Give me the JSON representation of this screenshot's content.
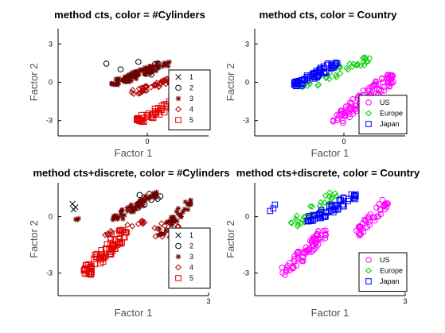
{
  "chart_data": [
    {
      "type": "scatter",
      "title": "method cts, color = #Cylinders",
      "xlabel": "Factor 1",
      "ylabel": "Factor 2",
      "xlim": [
        -3.2,
        2.2
      ],
      "ylim": [
        -4.2,
        4.2
      ],
      "xticks": [
        {
          "v": 0,
          "label": "0"
        }
      ],
      "yticks": [
        {
          "v": 3,
          "label": "3"
        },
        {
          "v": 0,
          "label": "0"
        },
        {
          "v": -3,
          "label": "-3"
        }
      ],
      "legend_position": "bottom-right",
      "series": [
        {
          "name": "1",
          "marker": "x",
          "color": "#000000",
          "clusters": []
        },
        {
          "name": "2",
          "marker": "circle",
          "color": "#000000",
          "clusters": [
            {
              "x": [
                -1.9,
                0.6
              ],
              "y": [
                0.4,
                1.6
              ],
              "n": 10
            }
          ]
        },
        {
          "name": "3",
          "marker": "star",
          "color": "#6e0000",
          "clusters": [
            {
              "x": [
                -1.3,
                0.8
              ],
              "y": [
                -0.2,
                1.6
              ],
              "n": 90
            }
          ]
        },
        {
          "name": "4",
          "marker": "diamond",
          "color": "#b00000",
          "clusters": [
            {
              "x": [
                -0.6,
                1.2
              ],
              "y": [
                -0.9,
                0.4
              ],
              "n": 45
            }
          ]
        },
        {
          "name": "5",
          "marker": "square",
          "color": "#e00000",
          "clusters": [
            {
              "x": [
                -0.4,
                1.5
              ],
              "y": [
                -3.1,
                -1.1
              ],
              "n": 60
            }
          ]
        }
      ]
    },
    {
      "type": "scatter",
      "title": "method cts, color = Country",
      "xlabel": "Factor 1",
      "ylabel": "Factor 2",
      "xlim": [
        -3.2,
        2.2
      ],
      "ylim": [
        -4.2,
        4.2
      ],
      "xticks": [
        {
          "v": 0,
          "label": "0"
        }
      ],
      "yticks": [
        {
          "v": 3,
          "label": "3"
        },
        {
          "v": 0,
          "label": "0"
        },
        {
          "v": -3,
          "label": "-3"
        }
      ],
      "legend_position": "bottom-right",
      "series": [
        {
          "name": "US",
          "marker": "circle",
          "color": "#ff00ff",
          "clusters": [
            {
              "x": [
                -0.4,
                1.8
              ],
              "y": [
                -3.2,
                0.6
              ],
              "n": 110
            }
          ]
        },
        {
          "name": "Europe",
          "marker": "diamond",
          "color": "#00cc00",
          "clusters": [
            {
              "x": [
                -1.5,
                1.0
              ],
              "y": [
                -0.4,
                2.0
              ],
              "n": 35
            }
          ]
        },
        {
          "name": "Japan",
          "marker": "square",
          "color": "#0000ff",
          "clusters": [
            {
              "x": [
                -1.8,
                -0.2
              ],
              "y": [
                -0.3,
                1.6
              ],
              "n": 70
            }
          ]
        }
      ]
    },
    {
      "type": "scatter",
      "title": "method cts+discrete, color = #Cylinders",
      "xlabel": "Factor 1",
      "ylabel": "Factor 2",
      "xlim": [
        -4.2,
        3.0
      ],
      "ylim": [
        -4.2,
        1.8
      ],
      "xticks": [
        {
          "v": 3,
          "label": "3"
        }
      ],
      "yticks": [
        {
          "v": 0,
          "label": "0"
        },
        {
          "v": -3,
          "label": "-3"
        }
      ],
      "legend_position": "bottom-right",
      "series": [
        {
          "name": "1",
          "marker": "x",
          "color": "#000000",
          "clusters": [
            {
              "x": [
                -3.55,
                -3.25
              ],
              "y": [
                0.3,
                0.8
              ],
              "n": 3
            }
          ]
        },
        {
          "name": "2",
          "marker": "circle",
          "color": "#000000",
          "clusters": [
            {
              "x": [
                -0.6,
                0.7
              ],
              "y": [
                0.3,
                1.3
              ],
              "n": 8
            }
          ]
        },
        {
          "name": "3",
          "marker": "star",
          "color": "#6e0000",
          "clusters": [
            {
              "x": [
                -3.6,
                -3.2
              ],
              "y": [
                -0.2,
                0.5
              ],
              "n": 3
            },
            {
              "x": [
                -1.6,
                0.6
              ],
              "y": [
                -0.2,
                1.3
              ],
              "n": 60
            },
            {
              "x": [
                0.6,
                2.2
              ],
              "y": [
                -1.0,
                0.9
              ],
              "n": 40
            }
          ]
        },
        {
          "name": "4",
          "marker": "diamond",
          "color": "#b00000",
          "clusters": [
            {
              "x": [
                -2.0,
                0.0
              ],
              "y": [
                -1.0,
                -0.2
              ],
              "n": 14
            },
            {
              "x": [
                0.4,
                1.6
              ],
              "y": [
                -1.1,
                -0.3
              ],
              "n": 10
            }
          ]
        },
        {
          "name": "5",
          "marker": "square",
          "color": "#e00000",
          "clusters": [
            {
              "x": [
                -3.0,
                -0.9
              ],
              "y": [
                -3.1,
                -0.7
              ],
              "n": 85
            }
          ]
        }
      ]
    },
    {
      "type": "scatter",
      "title": "method cts+discrete, color = Country",
      "xlabel": "Factor 1",
      "ylabel": "Factor 2",
      "xlim": [
        -4.2,
        3.0
      ],
      "ylim": [
        -4.2,
        1.8
      ],
      "xticks": [
        {
          "v": 3,
          "label": "3"
        }
      ],
      "yticks": [
        {
          "v": 0,
          "label": "0"
        },
        {
          "v": -3,
          "label": "-3"
        }
      ],
      "legend_position": "bottom-right",
      "series": [
        {
          "name": "US",
          "marker": "circle",
          "color": "#ff00ff",
          "clusters": [
            {
              "x": [
                -2.9,
                -0.8
              ],
              "y": [
                -3.1,
                -0.7
              ],
              "n": 75
            },
            {
              "x": [
                0.6,
                2.2
              ],
              "y": [
                -1.0,
                0.9
              ],
              "n": 45
            }
          ]
        },
        {
          "name": "Europe",
          "marker": "diamond",
          "color": "#00cc00",
          "clusters": [
            {
              "x": [
                -2.6,
                -0.2
              ],
              "y": [
                -0.6,
                1.3
              ],
              "n": 30
            }
          ]
        },
        {
          "name": "Japan",
          "marker": "square",
          "color": "#0000ff",
          "clusters": [
            {
              "x": [
                -3.6,
                -3.2
              ],
              "y": [
                0.3,
                0.7
              ],
              "n": 3
            },
            {
              "x": [
                -1.7,
                0.7
              ],
              "y": [
                -0.3,
                1.2
              ],
              "n": 60
            }
          ]
        }
      ]
    }
  ]
}
